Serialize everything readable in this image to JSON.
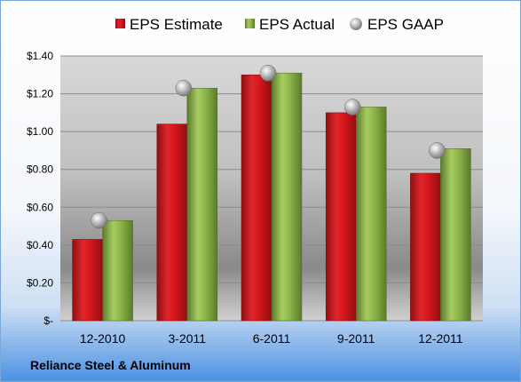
{
  "company": "Reliance Steel & Aluminum",
  "colors": {
    "estimate": "#d4161c",
    "actual": "#8db54a",
    "gaap": "#b8b8b8",
    "background_top": "#ffffff",
    "background_bottom": "#4a90e2"
  },
  "chart_data": {
    "type": "bar",
    "categories": [
      "12-2010",
      "3-2011",
      "6-2011",
      "9-2011",
      "12-2011"
    ],
    "series": [
      {
        "name": "EPS Estimate",
        "values": [
          0.43,
          1.04,
          1.3,
          1.1,
          0.78
        ]
      },
      {
        "name": "EPS Actual",
        "values": [
          0.53,
          1.23,
          1.31,
          1.13,
          0.91
        ]
      },
      {
        "name": "EPS GAAP",
        "marker": "sphere",
        "values": [
          0.53,
          1.23,
          1.31,
          1.13,
          0.9
        ]
      }
    ],
    "ylim": [
      0,
      1.4
    ],
    "yticks": [
      0,
      0.2,
      0.4,
      0.6,
      0.8,
      1.0,
      1.2,
      1.4
    ],
    "ytick_labels": [
      "$-",
      "$0.20",
      "$0.40",
      "$0.60",
      "$0.80",
      "$1.00",
      "$1.20",
      "$1.40"
    ],
    "grid": true,
    "legend_position": "top"
  }
}
